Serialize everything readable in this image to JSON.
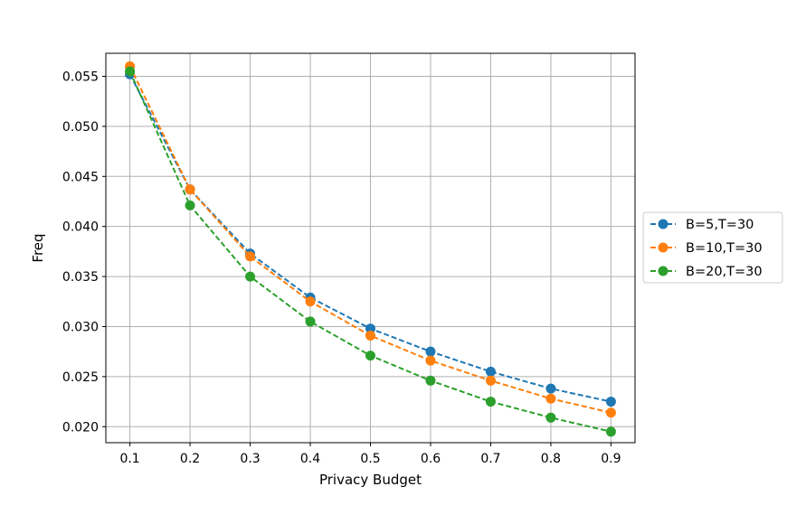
{
  "chart_data": {
    "type": "line",
    "title": "",
    "xlabel": "Privacy Budget",
    "ylabel": "Freq",
    "x": [
      0.1,
      0.2,
      0.3,
      0.4,
      0.5,
      0.6,
      0.7,
      0.8,
      0.9
    ],
    "xticks": [
      "0.1",
      "0.2",
      "0.3",
      "0.4",
      "0.5",
      "0.6",
      "0.7",
      "0.8",
      "0.9"
    ],
    "yticks": [
      "0.020",
      "0.025",
      "0.030",
      "0.035",
      "0.040",
      "0.045",
      "0.050",
      "0.055"
    ],
    "xlim": [
      0.06,
      0.94
    ],
    "ylim": [
      0.0184,
      0.0573
    ],
    "grid": true,
    "legend_position": "outside-right",
    "series": [
      {
        "name": "B=5,T=30",
        "color": "#1f77b4",
        "line_style": "dashed",
        "marker": "circle",
        "values": [
          0.0552,
          0.0437,
          0.0373,
          0.0329,
          0.0298,
          0.0275,
          0.0255,
          0.0238,
          0.0225
        ]
      },
      {
        "name": "B=10,T=30",
        "color": "#ff7f0e",
        "line_style": "dashed",
        "marker": "circle",
        "values": [
          0.056,
          0.0437,
          0.037,
          0.0325,
          0.0291,
          0.0266,
          0.0246,
          0.0228,
          0.0214
        ]
      },
      {
        "name": "B=20,T=30",
        "color": "#2ca02c",
        "line_style": "dashed",
        "marker": "circle",
        "values": [
          0.0555,
          0.0421,
          0.035,
          0.0305,
          0.0271,
          0.0246,
          0.0225,
          0.0209,
          0.0195
        ]
      }
    ]
  }
}
